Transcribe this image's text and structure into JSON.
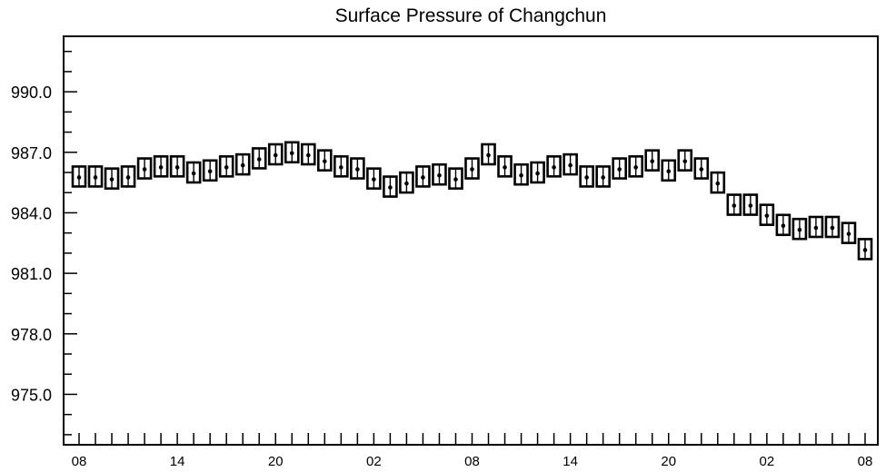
{
  "chart_data": {
    "type": "scatter",
    "title": "Surface Pressure of Changchun",
    "marker": "box",
    "x": [
      8,
      9,
      10,
      11,
      12,
      13,
      14,
      15,
      16,
      17,
      18,
      19,
      20,
      21,
      22,
      23,
      0,
      1,
      2,
      3,
      4,
      5,
      6,
      7,
      8,
      9,
      10,
      11,
      12,
      13,
      14,
      15,
      16,
      17,
      18,
      19,
      20,
      21,
      22,
      23,
      0,
      1,
      2,
      3,
      4,
      5,
      6,
      7,
      8
    ],
    "x_ticks": [
      "08",
      "14",
      "20",
      "02",
      "08",
      "14",
      "20",
      "02",
      "08"
    ],
    "series": [
      {
        "values": [
          985.8,
          985.8,
          985.7,
          985.8,
          986.2,
          986.3,
          986.3,
          986.0,
          986.1,
          986.3,
          986.4,
          986.7,
          986.9,
          987.0,
          986.9,
          986.6,
          986.3,
          986.2,
          985.7,
          985.3,
          985.5,
          985.8,
          985.9,
          985.7,
          986.2,
          986.9,
          986.3,
          985.9,
          986.0,
          986.3,
          986.4,
          985.8,
          985.8,
          986.2,
          986.3,
          986.6,
          986.1,
          986.6,
          986.2,
          985.5,
          984.4,
          984.4,
          983.9,
          983.4,
          983.2,
          983.3,
          983.3,
          983.0,
          982.2
        ]
      }
    ],
    "ylim": [
      972.5,
      992.75
    ],
    "y_ticks": [
      {
        "value": 990,
        "label": "990.0"
      },
      {
        "value": 987,
        "label": "987.0"
      },
      {
        "value": 984,
        "label": "984.0"
      },
      {
        "value": 981,
        "label": "981.0"
      },
      {
        "value": 978,
        "label": "978.0"
      },
      {
        "value": 975,
        "label": "975.0"
      }
    ],
    "y_minor_step": 1,
    "grid": false,
    "colors": {
      "marker": "#000000",
      "axis": "#000000",
      "background": "#ffffff"
    }
  }
}
